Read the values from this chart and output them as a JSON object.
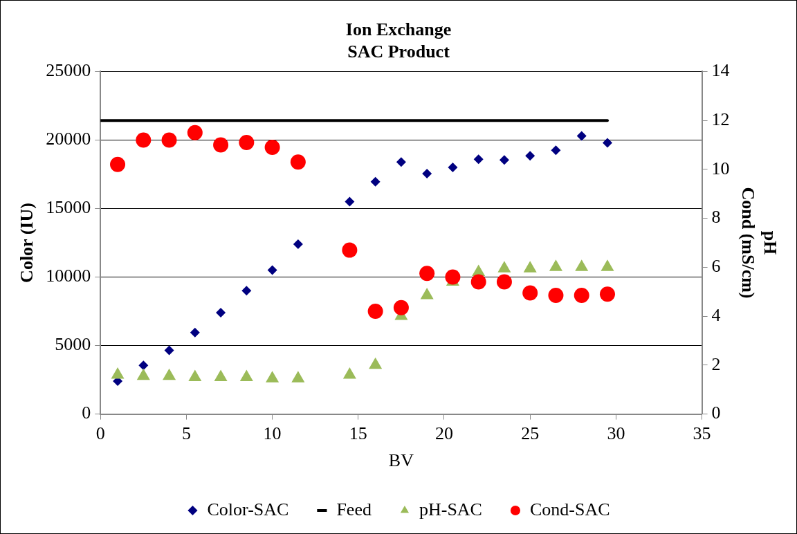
{
  "chart_data": {
    "type": "scatter",
    "title": "Ion Exchange\nSAC Product",
    "xlabel": "BV",
    "ylabel": "Color (IU)",
    "y2label": "pH\nCond (mS/cm)",
    "x": [
      1,
      2.5,
      4,
      5.5,
      7,
      8.5,
      10,
      11.5,
      14.5,
      16,
      17.5,
      19,
      20.5,
      22,
      23.5,
      25,
      26.5,
      28,
      29.5
    ],
    "series": [
      {
        "name": "Color-SAC",
        "color": "#000080",
        "marker": "diamond",
        "values": [
          2400,
          3550,
          4650,
          5950,
          7400,
          9000,
          10500,
          12400,
          15500,
          16950,
          18400,
          17550,
          18000,
          18600,
          18550,
          18850,
          19250,
          20300,
          19800
        ]
      },
      {
        "name": "Feed",
        "type": "line",
        "color": "#000000",
        "marker": "none",
        "axis": "y2",
        "x": [
          0,
          29.5
        ],
        "values": [
          12,
          12
        ]
      },
      {
        "name": "pH-SAC",
        "color": "#9bbb59",
        "marker": "triangle",
        "axis": "y2",
        "values": [
          1.6,
          1.55,
          1.55,
          1.5,
          1.5,
          1.5,
          1.45,
          1.45,
          1.6,
          2.0,
          4.0,
          4.85,
          5.4,
          5.8,
          5.95,
          5.95,
          6.0,
          6.0,
          6.0
        ]
      },
      {
        "name": "Cond-SAC",
        "color": "#ff0000",
        "marker": "circle",
        "axis": "y2",
        "values": [
          10.2,
          11.2,
          11.2,
          11.5,
          11.0,
          11.1,
          10.9,
          10.3,
          6.7,
          4.2,
          4.35,
          5.75,
          5.6,
          5.4,
          5.4,
          4.95,
          4.85,
          4.85,
          4.9
        ]
      }
    ],
    "xlim": [
      0,
      35
    ],
    "xticks": [
      0,
      5,
      10,
      15,
      20,
      25,
      30,
      35
    ],
    "ylim": [
      0,
      25000
    ],
    "yticks": [
      0,
      5000,
      10000,
      15000,
      20000,
      25000
    ],
    "y2lim": [
      0,
      14
    ],
    "y2ticks": [
      0,
      2,
      4,
      6,
      8,
      10,
      12,
      14
    ],
    "grid": "y",
    "legend": "bottom"
  }
}
